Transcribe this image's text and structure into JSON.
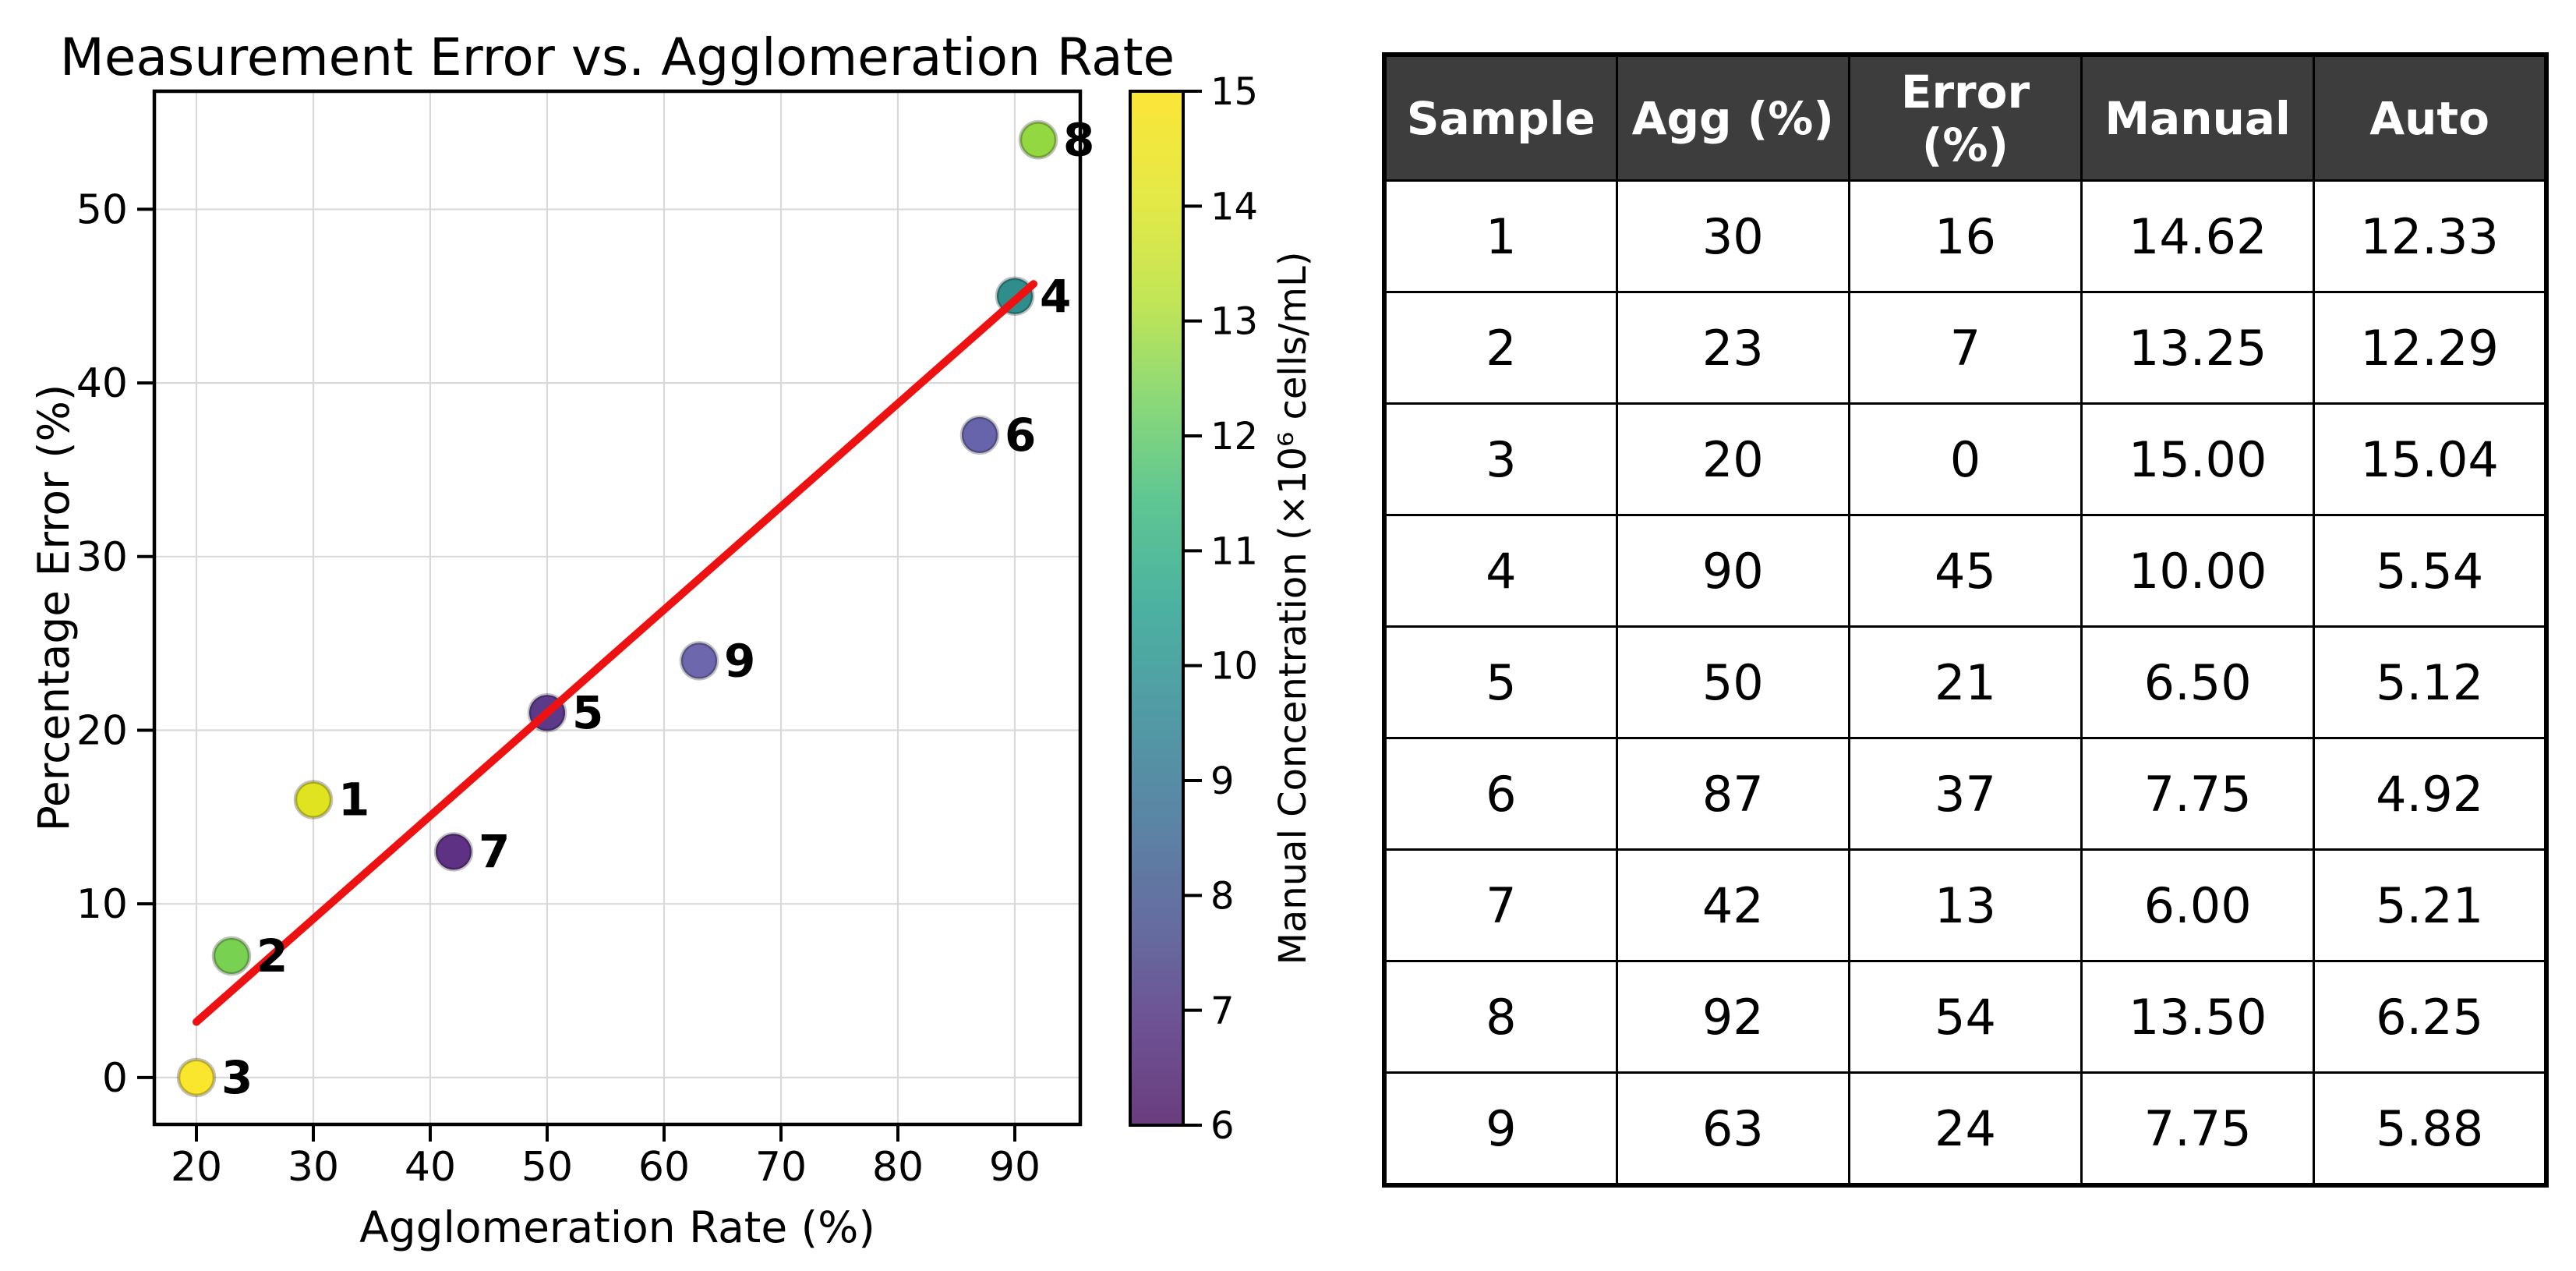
{
  "chart_data": {
    "type": "scatter",
    "title": "Measurement Error vs. Agglomeration Rate",
    "xlabel": "Agglomeration Rate (%)",
    "ylabel": "Percentage Error (%)",
    "colorbar_label": "Manual Concentration (×10⁶ cells/mL)",
    "xlim": [
      16.4,
      95.6
    ],
    "ylim": [
      -2.7,
      56.8
    ],
    "xticks": [
      20,
      30,
      40,
      50,
      60,
      70,
      80,
      90
    ],
    "yticks": [
      0,
      10,
      20,
      30,
      40,
      50
    ],
    "grid": true,
    "legend_position": "none",
    "points": [
      {
        "sample": "1",
        "x": 30,
        "y": 16,
        "value": 14.62,
        "color": "#e0e31f"
      },
      {
        "sample": "2",
        "x": 23,
        "y": 7,
        "value": 13.25,
        "color": "#79d151"
      },
      {
        "sample": "3",
        "x": 20,
        "y": 0,
        "value": 15.0,
        "color": "#fae62d"
      },
      {
        "sample": "4",
        "x": 90,
        "y": 45,
        "value": 10.0,
        "color": "#2f8e8c"
      },
      {
        "sample": "5",
        "x": 50,
        "y": 21,
        "value": 6.5,
        "color": "#5c3a8a"
      },
      {
        "sample": "6",
        "x": 87,
        "y": 37,
        "value": 7.75,
        "color": "#6764ab"
      },
      {
        "sample": "7",
        "x": 42,
        "y": 13,
        "value": 6.0,
        "color": "#5e3184"
      },
      {
        "sample": "8",
        "x": 92,
        "y": 54,
        "value": 13.5,
        "color": "#93d741"
      },
      {
        "sample": "9",
        "x": 63,
        "y": 24,
        "value": 7.75,
        "color": "#6d68ae"
      }
    ],
    "trend_line": {
      "color": "#ee1111",
      "x1": 20,
      "y1": 3.2,
      "x2": 91.6,
      "y2": 45.7
    },
    "colorbar": {
      "min": 6,
      "max": 15,
      "ticks": [
        6,
        7,
        8,
        9,
        10,
        11,
        12,
        13,
        14,
        15
      ],
      "colormap": "viridis",
      "gradient_stops": [
        [
          "0.0",
          "#6a3d7f"
        ],
        [
          "0.1",
          "#6d5394"
        ],
        [
          "0.2",
          "#656ea1"
        ],
        [
          "0.3",
          "#5a86a5"
        ],
        [
          "0.4",
          "#519ba5"
        ],
        [
          "0.5",
          "#4cb1a0"
        ],
        [
          "0.6",
          "#5dc594"
        ],
        [
          "0.7",
          "#8bd879"
        ],
        [
          "0.8",
          "#c4e555"
        ],
        [
          "0.9",
          "#e5e946"
        ],
        [
          "1.0",
          "#fbe636"
        ]
      ]
    },
    "colors": {
      "grid": "#d9d9d9",
      "spine": "#000000",
      "tick_label": "#000000",
      "point_edge": "rgba(0,0,0,0.25)"
    }
  },
  "table": {
    "headers": [
      "Sample",
      "Agg (%)",
      "Error (%)",
      "Manual",
      "Auto"
    ],
    "header_bg": "#3d3d3d",
    "header_text_color": "#ffffff",
    "rows": [
      [
        "1",
        "30",
        "16",
        "14.62",
        "12.33"
      ],
      [
        "2",
        "23",
        "7",
        "13.25",
        "12.29"
      ],
      [
        "3",
        "20",
        "0",
        "15.00",
        "15.04"
      ],
      [
        "4",
        "90",
        "45",
        "10.00",
        "5.54"
      ],
      [
        "5",
        "50",
        "21",
        "6.50",
        "5.12"
      ],
      [
        "6",
        "87",
        "37",
        "7.75",
        "4.92"
      ],
      [
        "7",
        "42",
        "13",
        "6.00",
        "5.21"
      ],
      [
        "8",
        "92",
        "54",
        "13.50",
        "6.25"
      ],
      [
        "9",
        "63",
        "24",
        "7.75",
        "5.88"
      ]
    ]
  }
}
